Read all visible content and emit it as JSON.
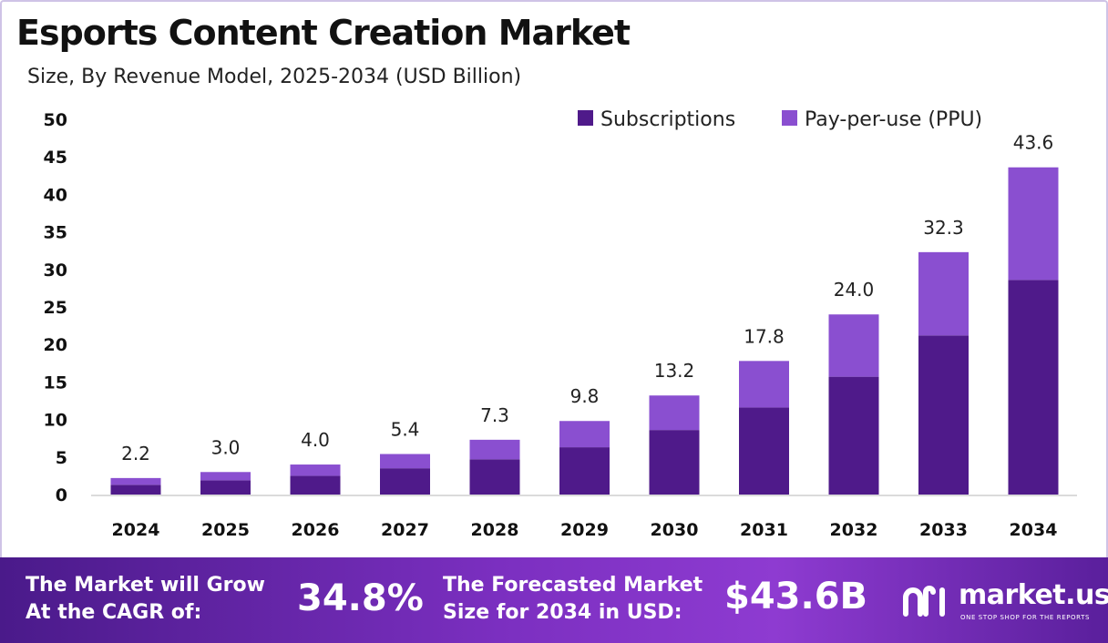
{
  "header": {
    "title": "Esports Content Creation Market",
    "subtitle": "Size, By Revenue Model, 2025-2034 (USD Billion)"
  },
  "colors": {
    "subscriptions": "#4f1a8a",
    "ppu": "#8a4fd0",
    "footer_start": "#4a1a8a",
    "footer_end": "#8e3bd1"
  },
  "chart_data": {
    "type": "bar",
    "stacked": true,
    "categories": [
      "2024",
      "2025",
      "2026",
      "2027",
      "2028",
      "2029",
      "2030",
      "2031",
      "2032",
      "2033",
      "2034"
    ],
    "series": [
      {
        "name": "Subscriptions",
        "values": [
          1.3,
          1.9,
          2.5,
          3.5,
          4.7,
          6.3,
          8.6,
          11.6,
          15.7,
          21.2,
          28.6
        ]
      },
      {
        "name": "Pay-per-use (PPU)",
        "values": [
          0.9,
          1.1,
          1.5,
          1.9,
          2.6,
          3.5,
          4.6,
          6.2,
          8.3,
          11.1,
          15.0
        ]
      }
    ],
    "totals": [
      "2.2",
      "3.0",
      "4.0",
      "5.4",
      "7.3",
      "9.8",
      "13.2",
      "17.8",
      "24.0",
      "32.3",
      "43.6"
    ],
    "yticks": [
      "0",
      "5",
      "10",
      "15",
      "20",
      "25",
      "30",
      "35",
      "40",
      "45",
      "50"
    ],
    "ylim": [
      0,
      50
    ],
    "legend_position": "top-right",
    "grid": false
  },
  "footer": {
    "cagr_label_line1": "The Market will Grow",
    "cagr_label_line2": "At the CAGR of:",
    "cagr_value": "34.8%",
    "forecast_label_line1": "The Forecasted Market",
    "forecast_label_line2": "Size for 2034 in USD:",
    "forecast_value": "$43.6B",
    "brand_name": "market.us",
    "brand_tagline": "ONE STOP SHOP FOR THE REPORTS"
  }
}
